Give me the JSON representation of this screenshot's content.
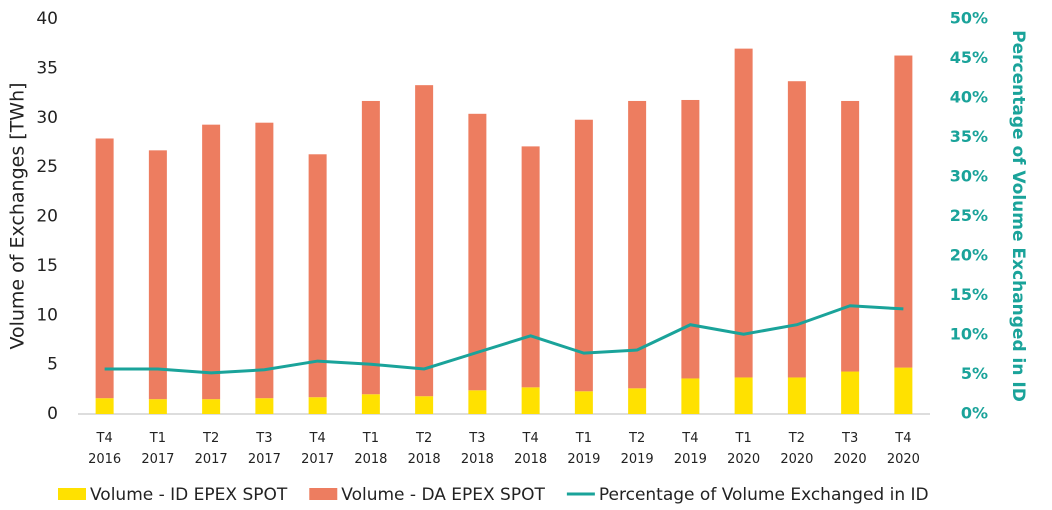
{
  "chart_data": {
    "type": "bar_line",
    "ylabel": "Volume of Exchanges [TWh]",
    "y2label": "Percentage of Volume Exchanged in ID",
    "categories": [
      "T4 2016",
      "T1 2017",
      "T2 2017",
      "T3 2017",
      "T4 2017",
      "T1 2018",
      "T2 2018",
      "T3 2018",
      "T4 2018",
      "T1 2019",
      "T2 2019",
      "T4 2019",
      "T1 2020",
      "T2 2020",
      "T3 2020",
      "T4 2020"
    ],
    "series": [
      {
        "name": "Volume - ID EPEX SPOT",
        "color": "#ffe100",
        "kind": "bar",
        "values": [
          1.6,
          1.5,
          1.5,
          1.6,
          1.7,
          2.0,
          1.8,
          2.4,
          2.7,
          2.3,
          2.6,
          3.6,
          3.7,
          3.7,
          4.3,
          4.7
        ]
      },
      {
        "name": "Volume - DA EPEX SPOT",
        "color": "#ed7d60",
        "kind": "bar",
        "values": [
          26.3,
          25.2,
          27.8,
          27.9,
          24.6,
          29.7,
          31.5,
          28.0,
          24.4,
          27.5,
          29.1,
          28.2,
          33.3,
          30.0,
          27.4,
          31.6
        ]
      },
      {
        "name": "Percentage of Volume Exchanged in ID",
        "color": "#1aa39a",
        "kind": "line",
        "axis": "y2",
        "values": [
          5.7,
          5.7,
          5.2,
          5.6,
          6.7,
          6.3,
          5.7,
          7.8,
          9.9,
          7.7,
          8.1,
          11.3,
          10.1,
          11.3,
          13.7,
          13.3
        ]
      }
    ],
    "ylim": [
      0,
      40
    ],
    "yticks": [
      0,
      5,
      10,
      15,
      20,
      25,
      30,
      35,
      40
    ],
    "y2lim": [
      0,
      50
    ],
    "y2ticks": [
      {
        "value": 0,
        "label": "0%"
      },
      {
        "value": 5,
        "label": "5%"
      },
      {
        "value": 10,
        "label": "10%"
      },
      {
        "value": 15,
        "label": "15%"
      },
      {
        "value": 20,
        "label": "20%"
      },
      {
        "value": 25,
        "label": "25%"
      },
      {
        "value": 30,
        "label": "30%"
      },
      {
        "value": 35,
        "label": "35%"
      },
      {
        "value": 40,
        "label": "40%"
      },
      {
        "value": 45,
        "label": "45%"
      },
      {
        "value": 50,
        "label": "50%"
      }
    ],
    "grid": false
  }
}
